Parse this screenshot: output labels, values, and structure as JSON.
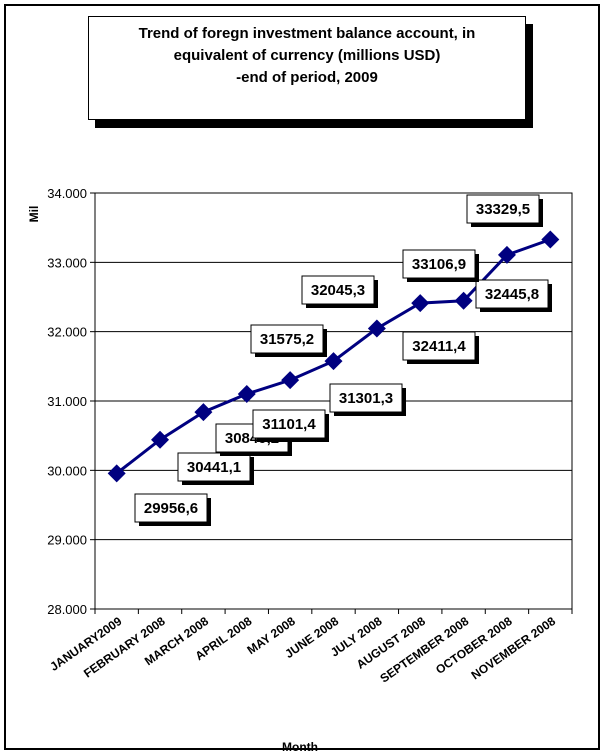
{
  "chart_data": {
    "type": "line",
    "title_lines": [
      "Trend of foregn investment balance account, in",
      "equivalent of currency (millions USD)",
      "-end of period, 2009"
    ],
    "xlabel": "Month",
    "ylabel": "Mil",
    "ylim": [
      28000,
      34000
    ],
    "y_ticks": [
      28000,
      29000,
      30000,
      31000,
      32000,
      33000,
      34000
    ],
    "y_tick_labels": [
      "28.000",
      "29.000",
      "30.000",
      "31.000",
      "32.000",
      "33.000",
      "34.000"
    ],
    "categories": [
      "JANUARY2009",
      "FEBRUARY 2008",
      "MARCH 2008",
      "APRIL 2008",
      "MAY 2008",
      "JUNE 2008",
      "JULY 2008",
      "AUGUST 2008",
      "SEPTEMBER 2008",
      "OCTOBER 2008",
      "NOVEMBER 2008"
    ],
    "values": [
      29956.6,
      30441.1,
      30840.2,
      31101.4,
      31301.3,
      31575.2,
      32045.3,
      32411.4,
      32445.8,
      33106.9,
      33329.5
    ],
    "data_labels": [
      "29956,6",
      "30441,1",
      "30840,2",
      "31101,4",
      "31301,3",
      "31575,2",
      "32045,3",
      "32411,4",
      "32445,8",
      "33106,9",
      "33329,5"
    ],
    "line_color": "#000080",
    "marker_color": "#000080",
    "grid": true,
    "legend": false
  }
}
